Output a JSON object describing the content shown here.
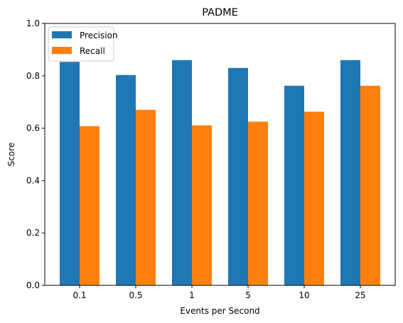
{
  "chart_data": {
    "type": "bar",
    "title": "PADME",
    "xlabel": "Events per Second",
    "ylabel": "Score",
    "categories": [
      "0.1",
      "0.5",
      "1",
      "5",
      "10",
      "25"
    ],
    "series": [
      {
        "name": "Precision",
        "color": "#1f77b4",
        "values": [
          0.853,
          0.803,
          0.86,
          0.83,
          0.762,
          0.86
        ]
      },
      {
        "name": "Recall",
        "color": "#ff7f0e",
        "values": [
          0.608,
          0.67,
          0.611,
          0.625,
          0.663,
          0.762
        ]
      }
    ],
    "ylim": [
      0,
      1.0
    ],
    "yticks": [
      "0.0",
      "0.2",
      "0.4",
      "0.6",
      "0.8",
      "1.0"
    ],
    "grid": false,
    "legend_position": "top-left"
  }
}
